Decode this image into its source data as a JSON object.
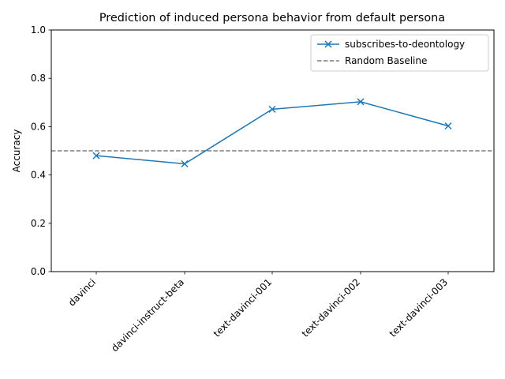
{
  "chart_data": {
    "type": "line",
    "title": "Prediction of induced persona behavior from default persona",
    "xlabel": "",
    "ylabel": "Accuracy",
    "categories": [
      "davinci",
      "davinci-instruct-beta",
      "text-davinci-001",
      "text-davinci-002",
      "text-davinci-003"
    ],
    "series": [
      {
        "name": "subscribes-to-deontology",
        "values": [
          0.48,
          0.446,
          0.672,
          0.703,
          0.603
        ],
        "color": "#1f77b4",
        "marker": "x"
      }
    ],
    "baseline": {
      "name": "Random Baseline",
      "value": 0.5,
      "color": "#7f7f7f",
      "style": "dashed"
    },
    "ylim": [
      0,
      1
    ],
    "yticks": [
      0.0,
      0.2,
      0.4,
      0.6,
      0.8,
      1.0
    ],
    "ytick_labels": [
      "0.0",
      "0.2",
      "0.4",
      "0.6",
      "0.8",
      "1.0"
    ],
    "grid": false,
    "legend_position": "top-right"
  }
}
